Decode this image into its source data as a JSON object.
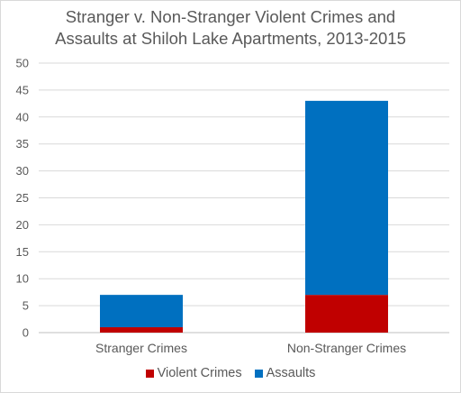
{
  "chart_data": {
    "type": "bar",
    "stacked": true,
    "title": [
      "Stranger v. Non-Stranger Violent Crimes and",
      "Assaults at Shiloh Lake Apartments, 2013-2015"
    ],
    "categories": [
      "Stranger Crimes",
      "Non-Stranger Crimes"
    ],
    "series": [
      {
        "name": "Violent Crimes",
        "values": [
          1,
          7
        ],
        "color": "#c00000"
      },
      {
        "name": "Assaults",
        "values": [
          6,
          36
        ],
        "color": "#0070c0"
      }
    ],
    "ylim": [
      0,
      50
    ],
    "yticks": [
      0,
      5,
      10,
      15,
      20,
      25,
      30,
      35,
      40,
      45,
      50
    ],
    "xlabel": "",
    "ylabel": "",
    "grid": true,
    "legend_position": "bottom"
  }
}
